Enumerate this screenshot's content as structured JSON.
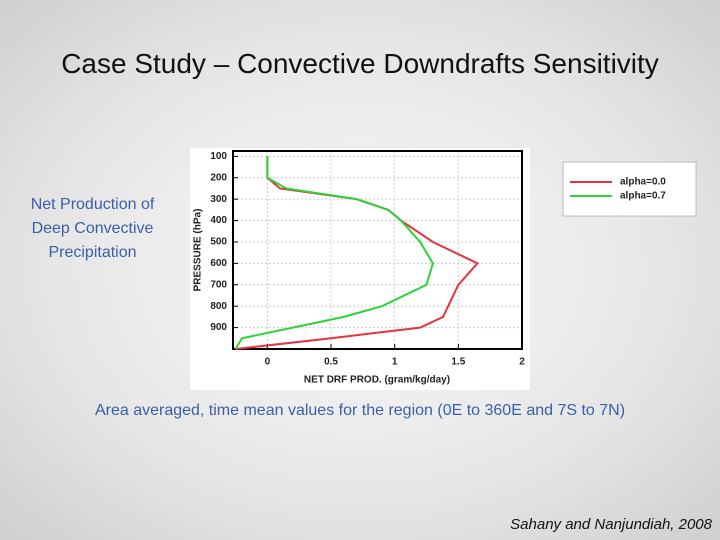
{
  "slide": {
    "title": "Case Study – Convective Downdrafts Sensitivity",
    "side_text": [
      "Net Production of",
      "Deep Convective",
      "Precipitation"
    ],
    "caption": "Area averaged, time mean values for the region (0E to 360E and 7S to 7N)",
    "citation": "Sahany and Nanjundiah, 2008"
  },
  "chart_data": {
    "type": "line",
    "x_label": "NET DRF PROD. (gram/kg/day)",
    "y_label": "PRESSURE (hPa)",
    "y": [
      100,
      200,
      250,
      300,
      350,
      400,
      500,
      600,
      700,
      800,
      850,
      900,
      950,
      1000
    ],
    "series": [
      {
        "name": "alpha=0.0",
        "color": "#e8323c",
        "values": [
          0,
          0,
          0.1,
          0.7,
          0.95,
          1.05,
          1.3,
          1.65,
          1.5,
          1.42,
          1.38,
          1.2,
          0.5,
          -0.25
        ]
      },
      {
        "name": "alpha=0.7",
        "color": "#2fd23a",
        "values": [
          0,
          0,
          0.15,
          0.7,
          0.95,
          1.05,
          1.2,
          1.3,
          1.25,
          0.9,
          0.6,
          0.2,
          -0.2,
          -0.25
        ]
      }
    ],
    "xlim": [
      -0.27,
      2
    ],
    "xticks": [
      0,
      0.5,
      1,
      1.5,
      2
    ],
    "ylim": [
      1000,
      75
    ],
    "yticks": [
      100,
      200,
      300,
      400,
      500,
      600,
      700,
      800,
      900
    ],
    "grid": true
  }
}
